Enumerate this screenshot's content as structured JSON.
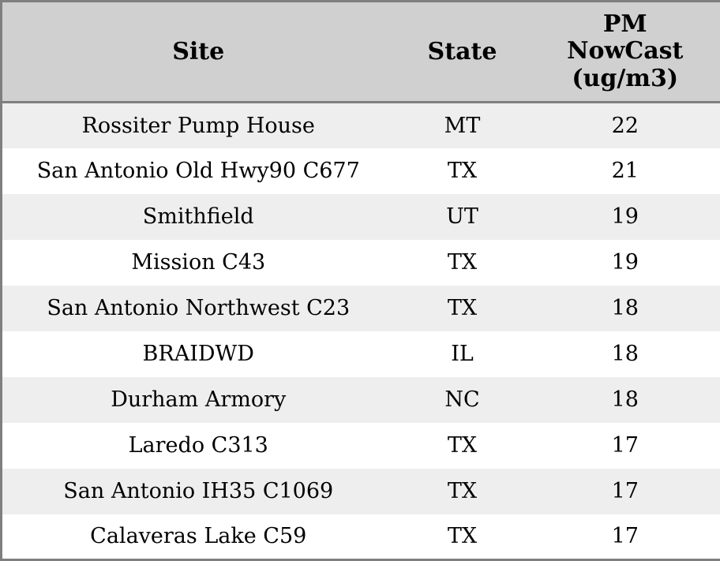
{
  "colors": {
    "outer_border": "#7f7f7f",
    "header_background": "#d0d0d0",
    "header_separator": "#7f7f7f",
    "row_stripe_odd": "#eeeeee",
    "row_stripe_even": "#ffffff",
    "text": "#000000"
  },
  "table": {
    "columns": [
      {
        "key": "site",
        "label": "Site"
      },
      {
        "key": "state",
        "label": "State"
      },
      {
        "key": "pm_nowcast",
        "label": "PM\nNowCast\n(ug/m3)"
      }
    ],
    "rows": [
      {
        "site": "Rossiter Pump House",
        "state": "MT",
        "pm_nowcast": "22"
      },
      {
        "site": "San Antonio Old Hwy90 C677",
        "state": "TX",
        "pm_nowcast": "21"
      },
      {
        "site": "Smithfield",
        "state": "UT",
        "pm_nowcast": "19"
      },
      {
        "site": "Mission C43",
        "state": "TX",
        "pm_nowcast": "19"
      },
      {
        "site": "San Antonio Northwest C23",
        "state": "TX",
        "pm_nowcast": "18"
      },
      {
        "site": "BRAIDWD",
        "state": "IL",
        "pm_nowcast": "18"
      },
      {
        "site": "Durham Armory",
        "state": "NC",
        "pm_nowcast": "18"
      },
      {
        "site": "Laredo C313",
        "state": "TX",
        "pm_nowcast": "17"
      },
      {
        "site": "San Antonio IH35 C1069",
        "state": "TX",
        "pm_nowcast": "17"
      },
      {
        "site": "Calaveras Lake C59",
        "state": "TX",
        "pm_nowcast": "17"
      }
    ]
  }
}
